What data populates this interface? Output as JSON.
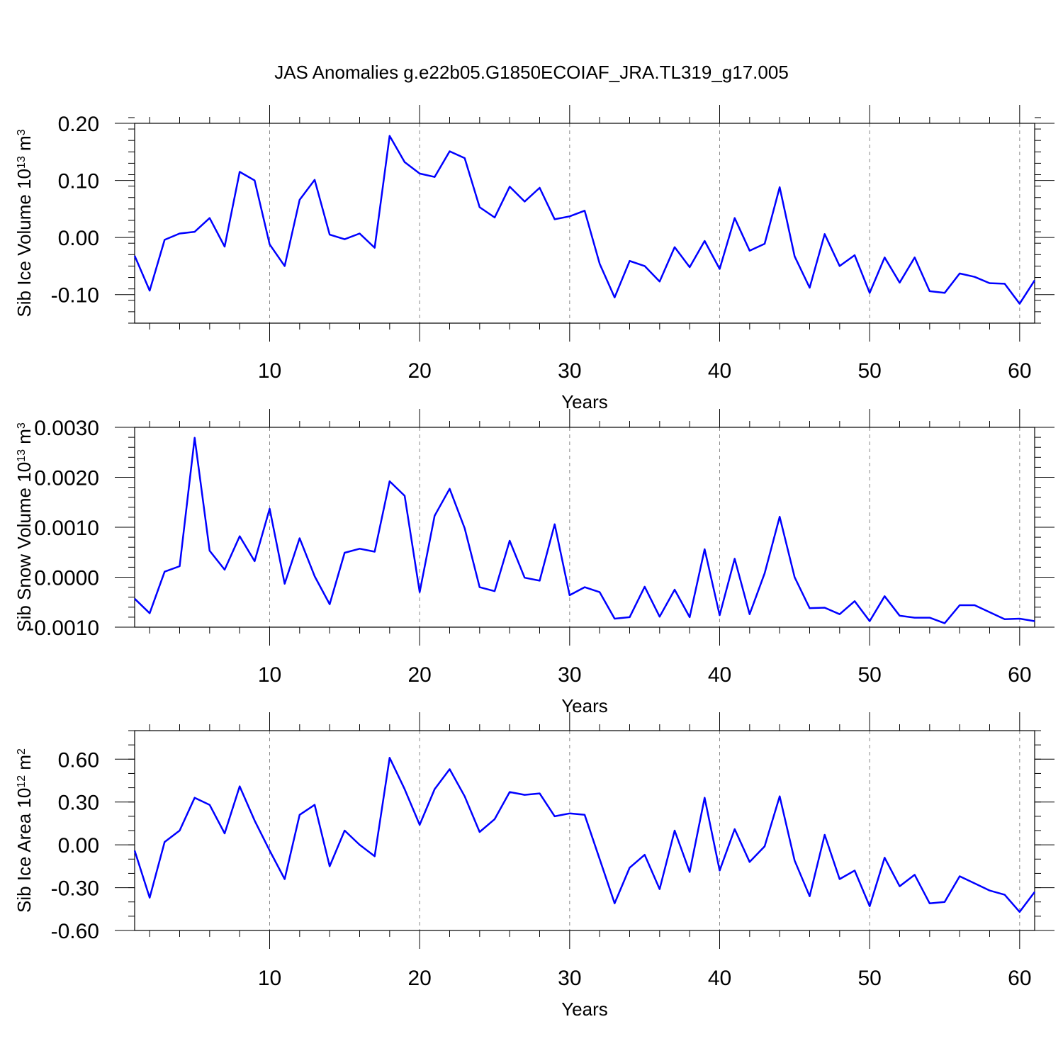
{
  "title": "JAS Anomalies g.e22b05.G1850ECOIAF_JRA.TL319_g17.005",
  "colors": {
    "series": "#0000ff",
    "axis": "#000000",
    "grid": "#888888"
  },
  "chart_data": [
    {
      "type": "line",
      "xlabel": "Years",
      "ylabel": {
        "text": "Sib Ice Volume 10",
        "sup1": "13",
        "mid": " m",
        "sup2": "3"
      },
      "xlim": [
        1,
        61
      ],
      "ylim": [
        -0.15,
        0.2
      ],
      "yticks": [
        -0.1,
        0.0,
        0.1,
        0.2
      ],
      "ytick_labels": [
        "-0.10",
        "0.00",
        "0.10",
        "0.20"
      ],
      "yminor_step": 0.02,
      "xticks": [
        10,
        20,
        30,
        40,
        50,
        60
      ],
      "xtick_labels": [
        "10",
        "20",
        "30",
        "40",
        "50",
        "60"
      ],
      "grid_x": true,
      "values": [
        -0.032,
        -0.093,
        -0.004,
        0.007,
        0.01,
        0.034,
        -0.016,
        0.115,
        0.1,
        -0.012,
        -0.05,
        0.066,
        0.101,
        0.005,
        -0.003,
        0.007,
        -0.018,
        0.178,
        0.132,
        0.112,
        0.106,
        0.151,
        0.139,
        0.053,
        0.035,
        0.089,
        0.063,
        0.087,
        0.032,
        0.037,
        0.047,
        -0.046,
        -0.105,
        -0.041,
        -0.05,
        -0.077,
        -0.017,
        -0.052,
        -0.006,
        -0.055,
        0.034,
        -0.023,
        -0.011,
        0.088,
        -0.033,
        -0.088,
        0.006,
        -0.05,
        -0.031,
        -0.097,
        -0.035,
        -0.079,
        -0.035,
        -0.094,
        -0.097,
        -0.063,
        -0.069,
        -0.08,
        -0.081,
        -0.116,
        -0.075
      ]
    },
    {
      "type": "line",
      "xlabel": "Years",
      "ylabel": {
        "text": "Sib Snow Volume 10",
        "sup1": "13",
        "mid": " m",
        "sup2": "3"
      },
      "xlim": [
        1,
        61
      ],
      "ylim": [
        -0.001,
        0.003
      ],
      "yticks": [
        -0.001,
        0.0,
        0.001,
        0.002,
        0.003
      ],
      "ytick_labels": [
        "-0.0010",
        "0.0000",
        "0.0010",
        "0.0020",
        "0.0030"
      ],
      "yminor_step": 0.0002,
      "xticks": [
        10,
        20,
        30,
        40,
        50,
        60
      ],
      "xtick_labels": [
        "10",
        "20",
        "30",
        "40",
        "50",
        "60"
      ],
      "grid_x": true,
      "values": [
        -0.00043,
        -0.00072,
        0.00011,
        0.00022,
        0.00279,
        0.00053,
        0.00015,
        0.00082,
        0.00032,
        0.00137,
        -0.00013,
        0.00078,
        2e-05,
        -0.00054,
        0.00049,
        0.00057,
        0.00051,
        0.00192,
        0.00163,
        -0.0003,
        0.00123,
        0.00177,
        0.00098,
        -0.0002,
        -0.00028,
        0.00073,
        -1e-05,
        -7e-05,
        0.00106,
        -0.00036,
        -0.0002,
        -0.0003,
        -0.00083,
        -0.0008,
        -0.00019,
        -0.00079,
        -0.00025,
        -0.0008,
        0.00056,
        -0.00076,
        0.00037,
        -0.00074,
        8e-05,
        0.00121,
        0.0,
        -0.00062,
        -0.00061,
        -0.00074,
        -0.00048,
        -0.00088,
        -0.00038,
        -0.00077,
        -0.00081,
        -0.00081,
        -0.00092,
        -0.00056,
        -0.00056,
        -0.0007,
        -0.00084,
        -0.00083,
        -0.00088
      ]
    },
    {
      "type": "line",
      "xlabel": "Years",
      "ylabel": {
        "text": "Sib Ice Area 10",
        "sup1": "12",
        "mid": " m",
        "sup2": "2"
      },
      "xlim": [
        1,
        61
      ],
      "ylim": [
        -0.6,
        0.8
      ],
      "yticks": [
        -0.6,
        -0.3,
        0.0,
        0.3,
        0.6
      ],
      "ytick_labels": [
        "-0.60",
        "-0.30",
        "0.00",
        "0.30",
        "0.60"
      ],
      "yminor_step": 0.1,
      "xticks": [
        10,
        20,
        30,
        40,
        50,
        60
      ],
      "xtick_labels": [
        "10",
        "20",
        "30",
        "40",
        "50",
        "60"
      ],
      "grid_x": true,
      "values": [
        -0.04,
        -0.37,
        0.02,
        0.1,
        0.33,
        0.28,
        0.08,
        0.41,
        0.17,
        -0.04,
        -0.24,
        0.21,
        0.28,
        -0.15,
        0.1,
        0.0,
        -0.08,
        0.61,
        0.39,
        0.14,
        0.39,
        0.53,
        0.34,
        0.09,
        0.18,
        0.37,
        0.35,
        0.36,
        0.2,
        0.22,
        0.21,
        -0.1,
        -0.41,
        -0.16,
        -0.07,
        -0.31,
        0.1,
        -0.19,
        0.33,
        -0.18,
        0.11,
        -0.12,
        -0.01,
        0.34,
        -0.11,
        -0.36,
        0.07,
        -0.24,
        -0.18,
        -0.43,
        -0.09,
        -0.29,
        -0.21,
        -0.41,
        -0.4,
        -0.22,
        -0.27,
        -0.32,
        -0.35,
        -0.47,
        -0.33
      ]
    }
  ]
}
